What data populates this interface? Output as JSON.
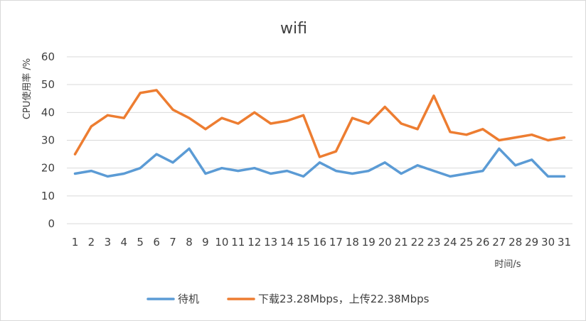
{
  "chart_data": {
    "type": "line",
    "title": "wifi",
    "xlabel": "时间/s",
    "ylabel": "CPU使用率 /%",
    "x": [
      1,
      2,
      3,
      4,
      5,
      6,
      7,
      8,
      9,
      10,
      11,
      12,
      13,
      14,
      15,
      16,
      17,
      18,
      19,
      20,
      21,
      22,
      23,
      24,
      25,
      26,
      27,
      28,
      29,
      30,
      31
    ],
    "ylim": [
      0,
      60
    ],
    "yticks": [
      0,
      10,
      20,
      30,
      40,
      50,
      60
    ],
    "grid": true,
    "legend_position": "bottom",
    "series": [
      {
        "name": "待机",
        "color": "#5b9bd5",
        "values": [
          18,
          19,
          17,
          18,
          20,
          25,
          22,
          27,
          18,
          20,
          19,
          20,
          18,
          19,
          17,
          22,
          19,
          18,
          19,
          22,
          18,
          21,
          19,
          17,
          18,
          19,
          27,
          21,
          23,
          17,
          17
        ]
      },
      {
        "name": "下载23.28Mbps，上传22.38Mbps",
        "color": "#ed7d31",
        "values": [
          25,
          35,
          39,
          38,
          47,
          48,
          41,
          38,
          34,
          38,
          36,
          40,
          36,
          37,
          39,
          24,
          26,
          38,
          36,
          42,
          36,
          34,
          46,
          33,
          32,
          34,
          30,
          31,
          32,
          30,
          31
        ]
      }
    ]
  }
}
